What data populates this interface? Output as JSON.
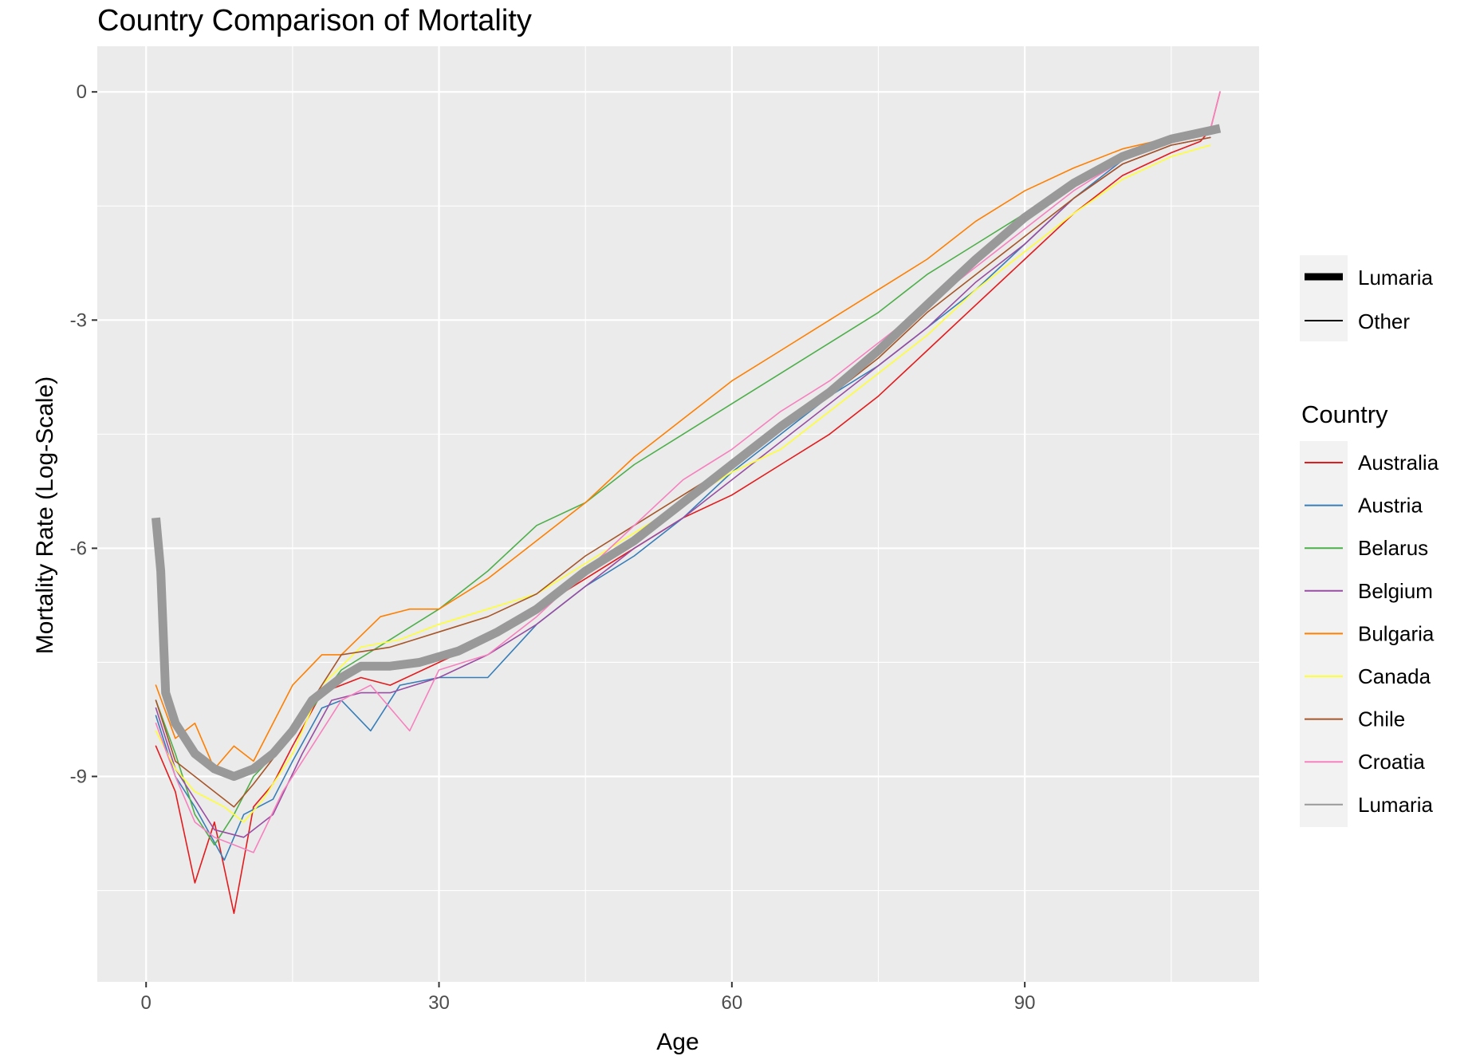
{
  "chart_data": {
    "type": "line",
    "title": "Country Comparison of Mortality",
    "xlabel": "Age",
    "ylabel": "Mortality Rate (Log-Scale)",
    "xlim": [
      -5,
      114
    ],
    "ylim": [
      -11.7,
      0.6
    ],
    "x_ticks": [
      0,
      30,
      60,
      90
    ],
    "y_ticks": [
      0,
      -3,
      -6,
      -9
    ],
    "x_tick_labels": [
      "0",
      "30",
      "60",
      "90"
    ],
    "y_tick_labels": [
      "0",
      "-3",
      "-6",
      "-9"
    ],
    "grid": true,
    "legend_position": "right",
    "size_legend": {
      "entries": [
        {
          "label": "Lumaria",
          "weight": "thick"
        },
        {
          "label": "Other",
          "weight": "thin"
        }
      ]
    },
    "color_legend": {
      "title": "Country",
      "entries": [
        {
          "label": "Australia",
          "color": "#e41a1c"
        },
        {
          "label": "Austria",
          "color": "#377eb8"
        },
        {
          "label": "Belarus",
          "color": "#4daf4a"
        },
        {
          "label": "Belgium",
          "color": "#984ea3"
        },
        {
          "label": "Bulgaria",
          "color": "#ff7f00"
        },
        {
          "label": "Canada",
          "color": "#ffff33"
        },
        {
          "label": "Chile",
          "color": "#a65628"
        },
        {
          "label": "Croatia",
          "color": "#f781bf"
        },
        {
          "label": "Lumaria",
          "color": "#999999"
        }
      ]
    },
    "series": [
      {
        "name": "Australia",
        "color": "#e41a1c",
        "points": [
          [
            1,
            -8.6
          ],
          [
            3,
            -9.2
          ],
          [
            5,
            -10.4
          ],
          [
            7,
            -9.6
          ],
          [
            9,
            -10.8
          ],
          [
            11,
            -9.4
          ],
          [
            13,
            -9.1
          ],
          [
            15,
            -8.6
          ],
          [
            18,
            -7.9
          ],
          [
            22,
            -7.7
          ],
          [
            25,
            -7.8
          ],
          [
            30,
            -7.5
          ],
          [
            35,
            -7.2
          ],
          [
            40,
            -6.8
          ],
          [
            45,
            -6.4
          ],
          [
            50,
            -6.0
          ],
          [
            55,
            -5.6
          ],
          [
            60,
            -5.3
          ],
          [
            65,
            -4.9
          ],
          [
            70,
            -4.5
          ],
          [
            75,
            -4.0
          ],
          [
            80,
            -3.4
          ],
          [
            85,
            -2.8
          ],
          [
            90,
            -2.2
          ],
          [
            95,
            -1.6
          ],
          [
            100,
            -1.1
          ],
          [
            105,
            -0.8
          ],
          [
            108,
            -0.65
          ],
          [
            109,
            -0.5
          ],
          [
            110,
            0.0
          ]
        ]
      },
      {
        "name": "Austria",
        "color": "#377eb8",
        "points": [
          [
            1,
            -8.2
          ],
          [
            3,
            -9.0
          ],
          [
            5,
            -9.4
          ],
          [
            8,
            -10.1
          ],
          [
            10,
            -9.5
          ],
          [
            13,
            -9.3
          ],
          [
            15,
            -8.8
          ],
          [
            18,
            -8.1
          ],
          [
            20,
            -8.0
          ],
          [
            23,
            -8.4
          ],
          [
            26,
            -7.8
          ],
          [
            30,
            -7.7
          ],
          [
            35,
            -7.7
          ],
          [
            40,
            -7.0
          ],
          [
            45,
            -6.5
          ],
          [
            50,
            -6.1
          ],
          [
            55,
            -5.6
          ],
          [
            60,
            -5.0
          ],
          [
            65,
            -4.5
          ],
          [
            70,
            -4.0
          ],
          [
            75,
            -3.6
          ],
          [
            80,
            -3.1
          ],
          [
            85,
            -2.6
          ],
          [
            90,
            -2.0
          ],
          [
            95,
            -1.4
          ],
          [
            100,
            -0.9
          ],
          [
            105,
            -0.65
          ],
          [
            109,
            -0.55
          ]
        ]
      },
      {
        "name": "Belarus",
        "color": "#4daf4a",
        "points": [
          [
            1,
            -8.0
          ],
          [
            3,
            -8.7
          ],
          [
            5,
            -9.5
          ],
          [
            7,
            -9.9
          ],
          [
            9,
            -9.5
          ],
          [
            11,
            -9.0
          ],
          [
            14,
            -8.6
          ],
          [
            17,
            -8.1
          ],
          [
            20,
            -7.6
          ],
          [
            25,
            -7.2
          ],
          [
            30,
            -6.8
          ],
          [
            35,
            -6.3
          ],
          [
            40,
            -5.7
          ],
          [
            45,
            -5.4
          ],
          [
            50,
            -4.9
          ],
          [
            55,
            -4.5
          ],
          [
            60,
            -4.1
          ],
          [
            65,
            -3.7
          ],
          [
            70,
            -3.3
          ],
          [
            75,
            -2.9
          ],
          [
            80,
            -2.4
          ],
          [
            85,
            -2.0
          ],
          [
            90,
            -1.6
          ],
          [
            95,
            -1.2
          ],
          [
            100,
            -0.85
          ],
          [
            105,
            -0.65
          ],
          [
            109,
            -0.55
          ]
        ]
      },
      {
        "name": "Belgium",
        "color": "#984ea3",
        "points": [
          [
            1,
            -8.1
          ],
          [
            3,
            -8.9
          ],
          [
            5,
            -9.3
          ],
          [
            7,
            -9.7
          ],
          [
            10,
            -9.8
          ],
          [
            13,
            -9.5
          ],
          [
            16,
            -8.7
          ],
          [
            19,
            -8.0
          ],
          [
            22,
            -7.9
          ],
          [
            25,
            -7.9
          ],
          [
            30,
            -7.7
          ],
          [
            35,
            -7.4
          ],
          [
            40,
            -7.0
          ],
          [
            45,
            -6.5
          ],
          [
            50,
            -6.0
          ],
          [
            55,
            -5.6
          ],
          [
            60,
            -5.1
          ],
          [
            65,
            -4.6
          ],
          [
            70,
            -4.1
          ],
          [
            75,
            -3.6
          ],
          [
            80,
            -3.1
          ],
          [
            85,
            -2.5
          ],
          [
            90,
            -2.0
          ],
          [
            95,
            -1.4
          ],
          [
            100,
            -0.95
          ],
          [
            105,
            -0.7
          ],
          [
            109,
            -0.6
          ]
        ]
      },
      {
        "name": "Bulgaria",
        "color": "#ff7f00",
        "points": [
          [
            1,
            -7.8
          ],
          [
            3,
            -8.5
          ],
          [
            5,
            -8.3
          ],
          [
            7,
            -8.9
          ],
          [
            9,
            -8.6
          ],
          [
            11,
            -8.8
          ],
          [
            13,
            -8.3
          ],
          [
            15,
            -7.8
          ],
          [
            18,
            -7.4
          ],
          [
            20,
            -7.4
          ],
          [
            24,
            -6.9
          ],
          [
            27,
            -6.8
          ],
          [
            30,
            -6.8
          ],
          [
            35,
            -6.4
          ],
          [
            40,
            -5.9
          ],
          [
            45,
            -5.4
          ],
          [
            50,
            -4.8
          ],
          [
            55,
            -4.3
          ],
          [
            60,
            -3.8
          ],
          [
            65,
            -3.4
          ],
          [
            70,
            -3.0
          ],
          [
            75,
            -2.6
          ],
          [
            80,
            -2.2
          ],
          [
            85,
            -1.7
          ],
          [
            90,
            -1.3
          ],
          [
            95,
            -1.0
          ],
          [
            100,
            -0.75
          ],
          [
            105,
            -0.6
          ],
          [
            109,
            -0.55
          ]
        ]
      },
      {
        "name": "Canada",
        "color": "#ffff33",
        "points": [
          [
            1,
            -8.4
          ],
          [
            3,
            -8.9
          ],
          [
            5,
            -9.2
          ],
          [
            8,
            -9.4
          ],
          [
            10,
            -9.6
          ],
          [
            12,
            -9.3
          ],
          [
            15,
            -8.7
          ],
          [
            18,
            -7.8
          ],
          [
            22,
            -7.3
          ],
          [
            26,
            -7.2
          ],
          [
            30,
            -7.0
          ],
          [
            35,
            -6.8
          ],
          [
            40,
            -6.6
          ],
          [
            45,
            -6.2
          ],
          [
            50,
            -5.8
          ],
          [
            55,
            -5.4
          ],
          [
            60,
            -5.0
          ],
          [
            65,
            -4.7
          ],
          [
            70,
            -4.2
          ],
          [
            75,
            -3.7
          ],
          [
            80,
            -3.2
          ],
          [
            85,
            -2.6
          ],
          [
            90,
            -2.1
          ],
          [
            95,
            -1.6
          ],
          [
            100,
            -1.15
          ],
          [
            105,
            -0.85
          ],
          [
            109,
            -0.7
          ]
        ]
      },
      {
        "name": "Chile",
        "color": "#a65628",
        "points": [
          [
            1,
            -8.0
          ],
          [
            3,
            -8.8
          ],
          [
            5,
            -9.0
          ],
          [
            7,
            -9.2
          ],
          [
            9,
            -9.4
          ],
          [
            11,
            -9.1
          ],
          [
            14,
            -8.6
          ],
          [
            17,
            -8.0
          ],
          [
            20,
            -7.4
          ],
          [
            25,
            -7.3
          ],
          [
            30,
            -7.1
          ],
          [
            35,
            -6.9
          ],
          [
            40,
            -6.6
          ],
          [
            45,
            -6.1
          ],
          [
            50,
            -5.7
          ],
          [
            55,
            -5.3
          ],
          [
            60,
            -4.9
          ],
          [
            65,
            -4.4
          ],
          [
            70,
            -4.0
          ],
          [
            75,
            -3.5
          ],
          [
            80,
            -2.9
          ],
          [
            85,
            -2.4
          ],
          [
            90,
            -1.9
          ],
          [
            95,
            -1.4
          ],
          [
            100,
            -0.95
          ],
          [
            105,
            -0.7
          ],
          [
            109,
            -0.6
          ]
        ]
      },
      {
        "name": "Croatia",
        "color": "#f781bf",
        "points": [
          [
            1,
            -8.3
          ],
          [
            3,
            -9.0
          ],
          [
            5,
            -9.6
          ],
          [
            7,
            -9.8
          ],
          [
            9,
            -9.9
          ],
          [
            11,
            -10.0
          ],
          [
            14,
            -9.2
          ],
          [
            17,
            -8.6
          ],
          [
            20,
            -8.0
          ],
          [
            23,
            -7.8
          ],
          [
            27,
            -8.4
          ],
          [
            30,
            -7.6
          ],
          [
            35,
            -7.4
          ],
          [
            40,
            -6.9
          ],
          [
            45,
            -6.3
          ],
          [
            50,
            -5.7
          ],
          [
            55,
            -5.1
          ],
          [
            60,
            -4.7
          ],
          [
            65,
            -4.2
          ],
          [
            70,
            -3.8
          ],
          [
            75,
            -3.3
          ],
          [
            80,
            -2.8
          ],
          [
            85,
            -2.3
          ],
          [
            90,
            -1.8
          ],
          [
            95,
            -1.3
          ],
          [
            100,
            -0.9
          ],
          [
            105,
            -0.65
          ],
          [
            109,
            -0.5
          ],
          [
            110,
            0.0
          ]
        ]
      },
      {
        "name": "Lumaria",
        "color": "#999999",
        "thick": true,
        "points": [
          [
            1,
            -5.6
          ],
          [
            1.5,
            -6.3
          ],
          [
            2,
            -7.9
          ],
          [
            3,
            -8.3
          ],
          [
            5,
            -8.7
          ],
          [
            7,
            -8.9
          ],
          [
            9,
            -9.0
          ],
          [
            11,
            -8.9
          ],
          [
            13,
            -8.7
          ],
          [
            15,
            -8.4
          ],
          [
            17,
            -8.0
          ],
          [
            20,
            -7.7
          ],
          [
            22,
            -7.55
          ],
          [
            25,
            -7.55
          ],
          [
            28,
            -7.5
          ],
          [
            32,
            -7.35
          ],
          [
            36,
            -7.1
          ],
          [
            40,
            -6.8
          ],
          [
            45,
            -6.3
          ],
          [
            50,
            -5.9
          ],
          [
            55,
            -5.4
          ],
          [
            60,
            -4.9
          ],
          [
            65,
            -4.4
          ],
          [
            70,
            -3.95
          ],
          [
            75,
            -3.4
          ],
          [
            80,
            -2.8
          ],
          [
            85,
            -2.2
          ],
          [
            90,
            -1.65
          ],
          [
            95,
            -1.2
          ],
          [
            100,
            -0.85
          ],
          [
            105,
            -0.62
          ],
          [
            110,
            -0.48
          ]
        ]
      }
    ]
  }
}
